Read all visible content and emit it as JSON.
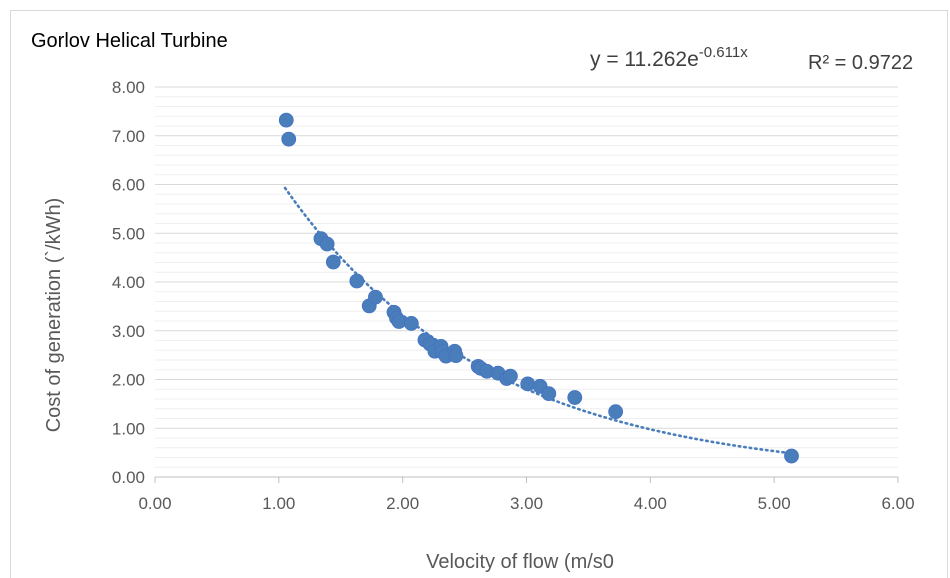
{
  "chart_data": {
    "type": "scatter",
    "title": "Gorlov Helical Turbine",
    "xlabel": "Velocity of flow (m/s0",
    "ylabel": "Cost of generation (`/kWh)",
    "xlim": [
      0,
      6
    ],
    "ylim": [
      0,
      8
    ],
    "x_ticks": [
      "0.00",
      "1.00",
      "2.00",
      "3.00",
      "4.00",
      "5.00",
      "6.00"
    ],
    "y_ticks": [
      "0.00",
      "1.00",
      "2.00",
      "3.00",
      "4.00",
      "5.00",
      "6.00",
      "7.00",
      "8.00"
    ],
    "grid": true,
    "marker_color": "#4a7ebb",
    "trendline": {
      "type": "exponential",
      "a": 11.262,
      "b": -0.611,
      "x_range": [
        1.05,
        5.15
      ],
      "style": "dotted",
      "equation_base": "y = 11.262e",
      "equation_exp": "-0.611x",
      "r_squared_label": "R² = 0.9722"
    },
    "points": [
      {
        "x": 1.06,
        "y": 7.32
      },
      {
        "x": 1.08,
        "y": 6.93
      },
      {
        "x": 1.34,
        "y": 4.89
      },
      {
        "x": 1.39,
        "y": 4.78
      },
      {
        "x": 1.44,
        "y": 4.41
      },
      {
        "x": 1.63,
        "y": 4.02
      },
      {
        "x": 1.73,
        "y": 3.51
      },
      {
        "x": 1.78,
        "y": 3.69
      },
      {
        "x": 1.93,
        "y": 3.38
      },
      {
        "x": 1.95,
        "y": 3.26
      },
      {
        "x": 1.97,
        "y": 3.19
      },
      {
        "x": 2.07,
        "y": 3.15
      },
      {
        "x": 2.18,
        "y": 2.81
      },
      {
        "x": 2.22,
        "y": 2.73
      },
      {
        "x": 2.26,
        "y": 2.58
      },
      {
        "x": 2.31,
        "y": 2.68
      },
      {
        "x": 2.32,
        "y": 2.57
      },
      {
        "x": 2.35,
        "y": 2.48
      },
      {
        "x": 2.42,
        "y": 2.58
      },
      {
        "x": 2.43,
        "y": 2.49
      },
      {
        "x": 2.61,
        "y": 2.27
      },
      {
        "x": 2.63,
        "y": 2.23
      },
      {
        "x": 2.68,
        "y": 2.17
      },
      {
        "x": 2.77,
        "y": 2.13
      },
      {
        "x": 2.84,
        "y": 2.02
      },
      {
        "x": 2.87,
        "y": 2.07
      },
      {
        "x": 3.01,
        "y": 1.91
      },
      {
        "x": 3.11,
        "y": 1.86
      },
      {
        "x": 3.18,
        "y": 1.71
      },
      {
        "x": 3.39,
        "y": 1.63
      },
      {
        "x": 3.72,
        "y": 1.34
      },
      {
        "x": 5.14,
        "y": 0.43
      }
    ]
  }
}
